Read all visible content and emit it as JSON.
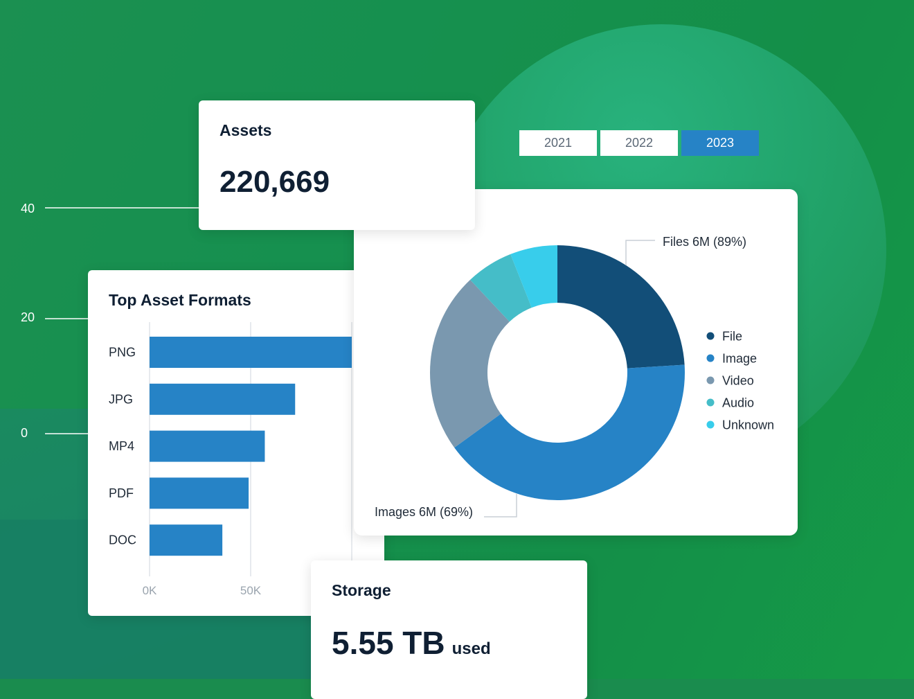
{
  "background_axis": {
    "ticks": [
      "40",
      "20",
      "0"
    ]
  },
  "assets": {
    "title": "Assets",
    "value": "220,669"
  },
  "year_tabs": [
    {
      "label": "2021",
      "active": false
    },
    {
      "label": "2022",
      "active": false
    },
    {
      "label": "2023",
      "active": true
    }
  ],
  "storage": {
    "title": "Storage",
    "value": "5.55 TB",
    "suffix": "used"
  },
  "colors": {
    "bar": "#2683c6",
    "file": "#124e78",
    "image": "#2683c6",
    "video": "#7a98af",
    "audio": "#45bdc8",
    "unknown": "#38cdeb"
  },
  "chart_data": [
    {
      "type": "bar",
      "orientation": "horizontal",
      "title": "Top Asset Formats",
      "categories": [
        "PNG",
        "JPG",
        "MP4",
        "PDF",
        "DOC"
      ],
      "values": [
        100000,
        72000,
        57000,
        49000,
        36000
      ],
      "xticks": [
        "0K",
        "50K"
      ],
      "xlim": [
        0,
        105000
      ],
      "grid": true
    },
    {
      "type": "pie",
      "style": "donut",
      "labels": [
        "File",
        "Image",
        "Video",
        "Audio",
        "Unknown"
      ],
      "values": [
        24,
        41,
        23,
        6,
        6
      ],
      "annotations": [
        {
          "series": "File",
          "text": "Files 6M (89%)"
        },
        {
          "series": "Image",
          "text": "Images 6M (69%)"
        }
      ],
      "legend": "right"
    }
  ]
}
